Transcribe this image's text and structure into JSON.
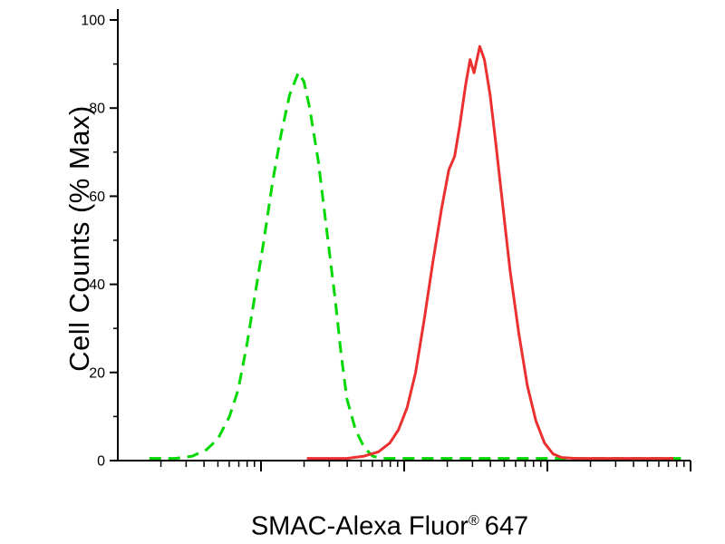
{
  "chart_data": {
    "type": "line",
    "subtype": "flow-cytometry-histogram",
    "title": "",
    "xlabel": "SMAC-Alexa Fluor® 647",
    "ylabel": "Cell Counts (% Max)",
    "x_scale": "log, 4 decades, unlabeled tick marks",
    "ylim": [
      0,
      100
    ],
    "y_ticks": [
      0,
      20,
      40,
      60,
      80,
      100
    ],
    "y_minor_ticks": [
      10,
      30,
      50,
      70,
      90
    ],
    "grid": false,
    "legend": "none",
    "series": [
      {
        "name": "green-dashed-control",
        "color": "#00d800",
        "style": "dashed",
        "peak": {
          "x_fraction": 0.315,
          "y_percent": 88
        },
        "points": [
          [
            0.055,
            0.5
          ],
          [
            0.1,
            0.5
          ],
          [
            0.13,
            1
          ],
          [
            0.155,
            2.5
          ],
          [
            0.175,
            5
          ],
          [
            0.195,
            10
          ],
          [
            0.21,
            16
          ],
          [
            0.225,
            26
          ],
          [
            0.24,
            38
          ],
          [
            0.255,
            50
          ],
          [
            0.27,
            63
          ],
          [
            0.285,
            74
          ],
          [
            0.3,
            83
          ],
          [
            0.315,
            88
          ],
          [
            0.325,
            86
          ],
          [
            0.335,
            80
          ],
          [
            0.35,
            68
          ],
          [
            0.365,
            52
          ],
          [
            0.38,
            36
          ],
          [
            0.39,
            24
          ],
          [
            0.4,
            14
          ],
          [
            0.415,
            7
          ],
          [
            0.43,
            3
          ],
          [
            0.445,
            1
          ],
          [
            0.46,
            0.5
          ],
          [
            0.6,
            0.5
          ],
          [
            0.75,
            0.5
          ],
          [
            0.9,
            0.5
          ],
          [
            0.99,
            0.5
          ]
        ]
      },
      {
        "name": "red-solid-stained",
        "color": "#ec3030",
        "style": "solid",
        "peak": {
          "x_fraction": 0.632,
          "y_percent": 94
        },
        "points": [
          [
            0.33,
            0.5
          ],
          [
            0.4,
            0.5
          ],
          [
            0.43,
            1
          ],
          [
            0.455,
            2
          ],
          [
            0.475,
            4
          ],
          [
            0.49,
            7
          ],
          [
            0.505,
            12
          ],
          [
            0.52,
            20
          ],
          [
            0.535,
            32
          ],
          [
            0.55,
            45
          ],
          [
            0.565,
            57
          ],
          [
            0.578,
            66
          ],
          [
            0.588,
            69
          ],
          [
            0.597,
            76
          ],
          [
            0.607,
            85
          ],
          [
            0.615,
            91
          ],
          [
            0.622,
            88
          ],
          [
            0.632,
            94
          ],
          [
            0.64,
            91
          ],
          [
            0.65,
            83
          ],
          [
            0.66,
            72
          ],
          [
            0.672,
            58
          ],
          [
            0.685,
            43
          ],
          [
            0.7,
            29
          ],
          [
            0.715,
            17
          ],
          [
            0.73,
            9
          ],
          [
            0.745,
            4
          ],
          [
            0.76,
            1.5
          ],
          [
            0.775,
            0.7
          ],
          [
            0.8,
            0.5
          ],
          [
            0.9,
            0.5
          ],
          [
            0.97,
            0.5
          ]
        ]
      }
    ]
  },
  "labels": {
    "ylabel": "Cell Counts (% Max)",
    "xlabel_main": "SMAC-Alexa Fluor",
    "xlabel_reg": "®",
    "xlabel_suffix": "647"
  }
}
